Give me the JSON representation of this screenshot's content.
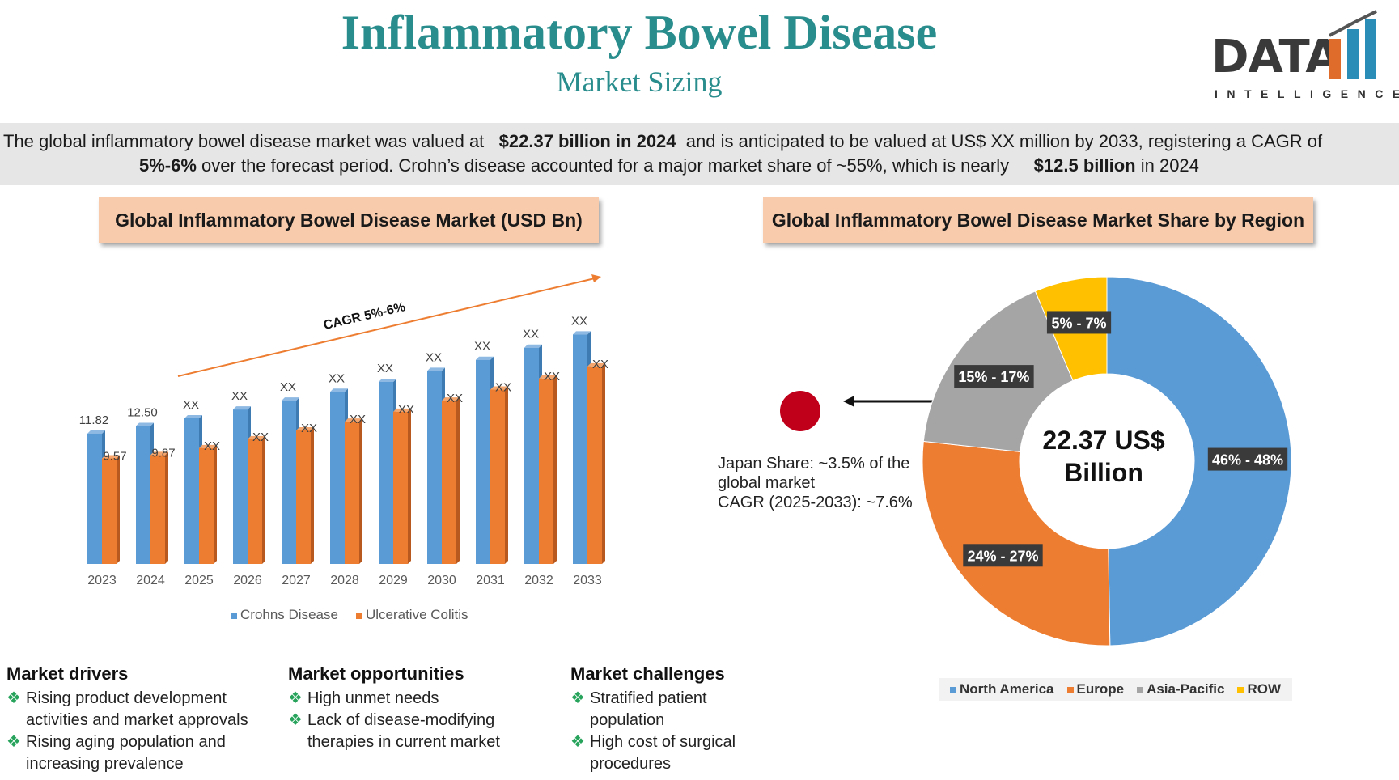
{
  "header": {
    "title": "Inflammatory Bowel Disease",
    "subtitle": "Market Sizing"
  },
  "logo": {
    "word": "DATA",
    "sub": "INTELLIGENCE"
  },
  "summary": {
    "l1_a": "The global inflammatory bowel disease market was valued at",
    "l1_b": "$22.37 billion in 2024",
    "l1_c": "and is anticipated to be valued at US$ XX million by 2033, registering a CAGR of",
    "l2_a": "5%-6%",
    "l2_b": "over the forecast period. Crohn’s disease accounted for a major market share of ~55%, which is nearly",
    "l2_c": "$12.5 billion",
    "l2_d": "in 2024"
  },
  "left_panel": {
    "heading": "Global Inflammatory Bowel Disease Market (USD Bn)"
  },
  "right_panel": {
    "heading": "Global Inflammatory Bowel Disease Market Share by Region"
  },
  "chart_data": [
    {
      "type": "bar",
      "title": "Global Inflammatory Bowel Disease Market (USD Bn)",
      "categories": [
        "2023",
        "2024",
        "2025",
        "2026",
        "2027",
        "2028",
        "2029",
        "2030",
        "2031",
        "2032",
        "2033"
      ],
      "series": [
        {
          "name": "Crohns Disease",
          "color": "#5b9bd5",
          "values": [
            11.82,
            12.5,
            13.2,
            14.0,
            14.8,
            15.6,
            16.5,
            17.5,
            18.5,
            19.6,
            20.8
          ],
          "labels": [
            "11.82",
            "12.50",
            "XX",
            "XX",
            "XX",
            "XX",
            "XX",
            "XX",
            "XX",
            "XX",
            "XX"
          ]
        },
        {
          "name": "Ulcerative Colitis",
          "color": "#ed7d31",
          "values": [
            9.57,
            9.87,
            10.5,
            11.3,
            12.1,
            12.9,
            13.8,
            14.8,
            15.8,
            16.8,
            17.9
          ],
          "labels": [
            "9.57",
            "9.87",
            "XX",
            "XX",
            "XX",
            "XX",
            "XX",
            "XX",
            "XX",
            "XX",
            "XX"
          ]
        }
      ],
      "annotation": "CAGR 5%-6%",
      "ylim": [
        0,
        22
      ]
    },
    {
      "type": "pie",
      "title": "Global Inflammatory Bowel Disease Market Share by Region",
      "center_label": [
        "22.37 US$",
        "Billion"
      ],
      "slices": [
        {
          "name": "North America",
          "value": 47,
          "label": "46% - 48%",
          "color": "#5b9bd5"
        },
        {
          "name": "Europe",
          "value": 25.5,
          "label": "24% - 27%",
          "color": "#ed7d31"
        },
        {
          "name": "Asia-Pacific",
          "value": 16,
          "label": "15% - 17%",
          "color": "#a5a5a5"
        },
        {
          "name": "ROW",
          "value": 6,
          "label": "5% - 7%",
          "color": "#ffc000"
        }
      ]
    }
  ],
  "japan": {
    "line1": "Japan Share: ~3.5% of the",
    "line2": "global market",
    "line3": "CAGR (2025-2033): ~7.6%"
  },
  "sections": {
    "drivers": {
      "title": "Market drivers",
      "items": [
        "Rising product development activities and market approvals",
        "Rising aging population and increasing prevalence"
      ]
    },
    "opportunities": {
      "title": "Market opportunities",
      "items": [
        "High unmet needs",
        "Lack of disease-modifying therapies in current market"
      ]
    },
    "challenges": {
      "title": "Market challenges",
      "items": [
        "Stratified patient population",
        "High cost of surgical procedures"
      ]
    }
  }
}
